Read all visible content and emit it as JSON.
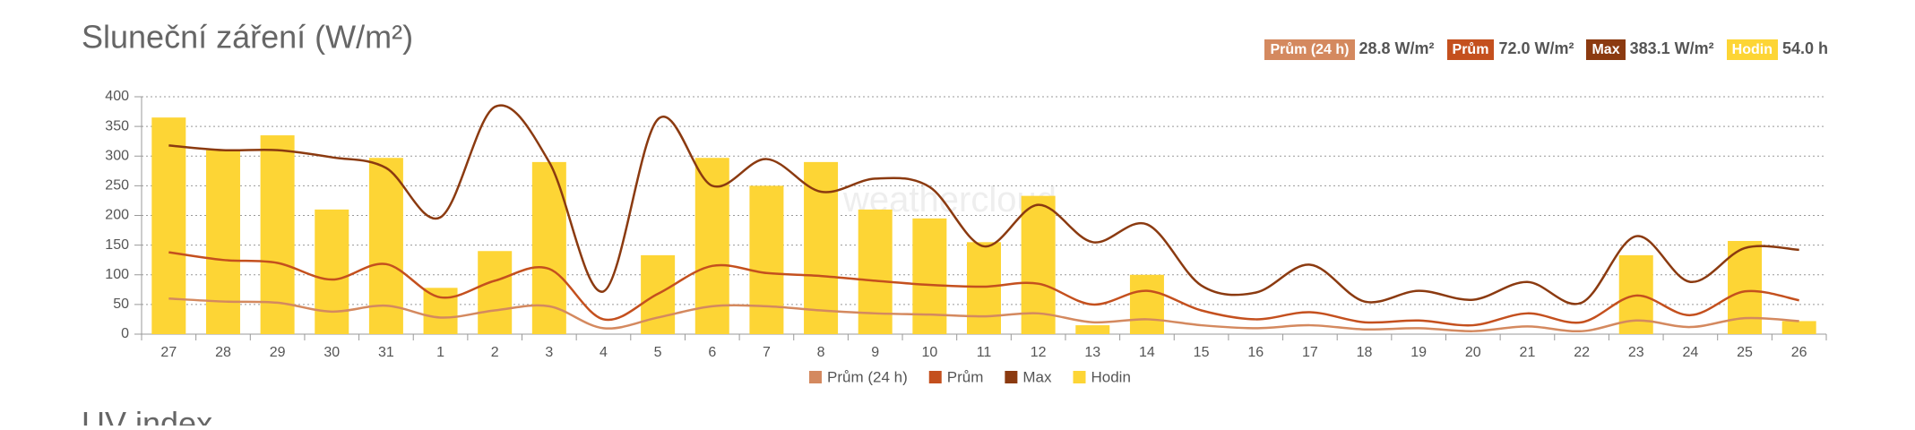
{
  "chart_data": {
    "type": "combo",
    "title": "Sluneční záření (W/m²)",
    "watermark": "weathercloud",
    "next_title": "UV index",
    "categories": [
      "27",
      "28",
      "29",
      "30",
      "31",
      "1",
      "2",
      "3",
      "4",
      "5",
      "6",
      "7",
      "8",
      "9",
      "10",
      "11",
      "12",
      "13",
      "14",
      "15",
      "16",
      "17",
      "18",
      "19",
      "20",
      "21",
      "22",
      "23",
      "24",
      "25",
      "26"
    ],
    "ylim": [
      0,
      400
    ],
    "yticks": [
      0,
      50,
      100,
      150,
      200,
      250,
      300,
      350,
      400
    ],
    "grid": true,
    "series": [
      {
        "name": "Hodin",
        "type": "bar",
        "color": "#fdd535",
        "summary": "54.0 h",
        "values": [
          365,
          310,
          335,
          210,
          297,
          78,
          140,
          290,
          0,
          133,
          297,
          250,
          290,
          210,
          195,
          155,
          233,
          15,
          100,
          0,
          0,
          0,
          0,
          0,
          0,
          0,
          0,
          133,
          0,
          157,
          22
        ]
      },
      {
        "name": "Prům (24 h)",
        "type": "line",
        "color": "#d4895f",
        "summary": "28.8 W/m²",
        "values": [
          60,
          55,
          53,
          38,
          48,
          28,
          40,
          47,
          10,
          28,
          47,
          47,
          40,
          35,
          33,
          30,
          35,
          20,
          25,
          15,
          10,
          15,
          8,
          10,
          5,
          13,
          5,
          23,
          12,
          27,
          22
        ]
      },
      {
        "name": "Prům",
        "type": "line",
        "color": "#c4501e",
        "summary": "72.0 W/m²",
        "values": [
          138,
          125,
          120,
          92,
          118,
          62,
          90,
          110,
          25,
          68,
          115,
          103,
          98,
          90,
          83,
          80,
          85,
          50,
          73,
          40,
          25,
          37,
          20,
          23,
          15,
          35,
          20,
          65,
          32,
          72,
          57
        ]
      },
      {
        "name": "Max",
        "type": "line",
        "color": "#8b3a10",
        "summary": "383.1 W/m²",
        "values": [
          318,
          310,
          310,
          298,
          280,
          197,
          383,
          290,
          72,
          362,
          250,
          295,
          240,
          262,
          248,
          148,
          218,
          155,
          185,
          82,
          70,
          117,
          55,
          73,
          58,
          88,
          53,
          165,
          88,
          145,
          142
        ]
      }
    ]
  }
}
